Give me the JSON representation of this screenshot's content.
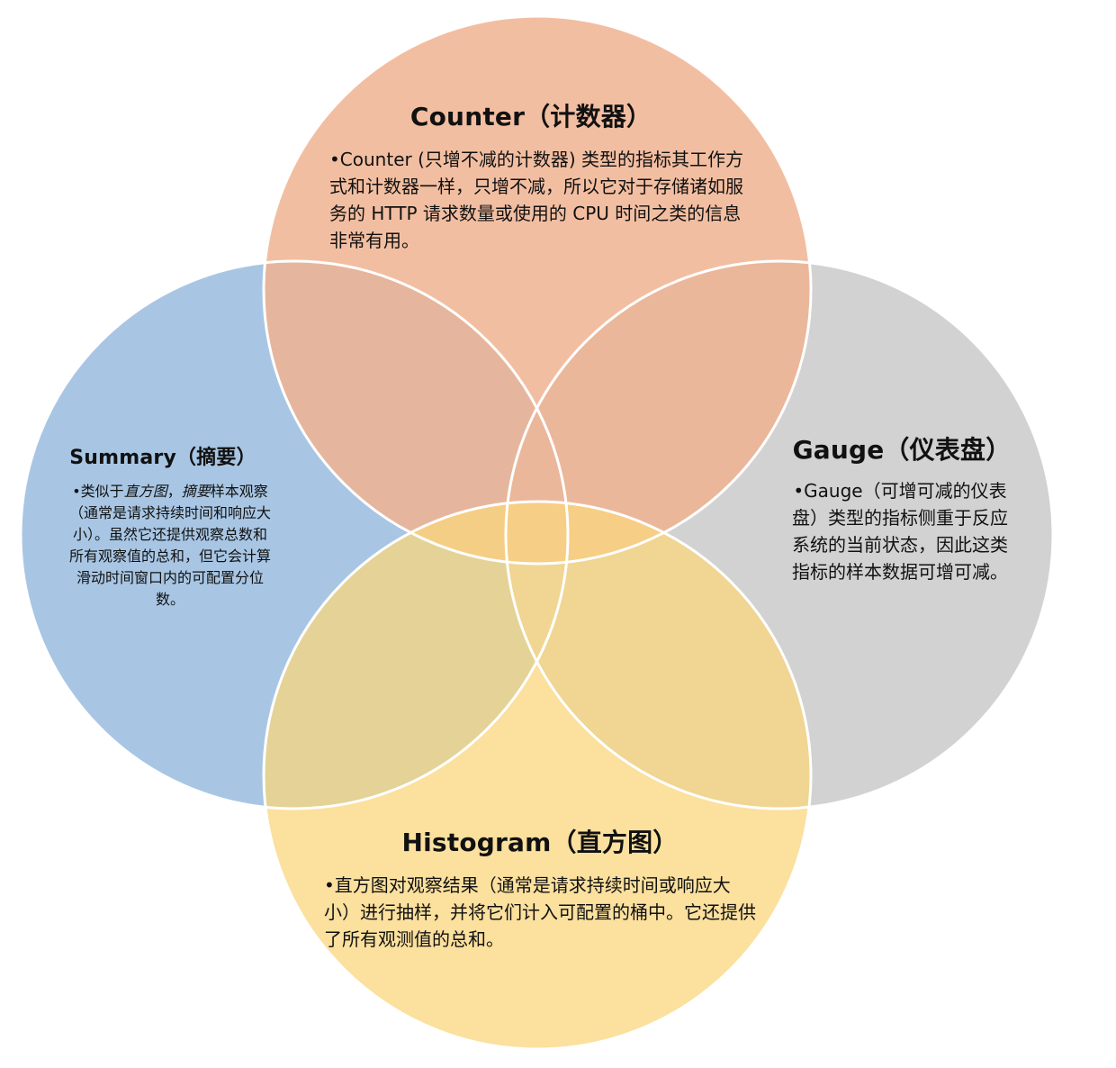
{
  "colors": {
    "counter": "#F0B390",
    "summary": "#A8C6E4",
    "gauge": "#D2D2D2",
    "histogram": "#FAD67E",
    "outline": "#FFFFFF"
  },
  "sets": {
    "counter": {
      "title": "Counter（计数器）",
      "description": "•Counter (只增不减的计数器) 类型的指标其工作方式和计数器一样，只增不减，所以它对于存储诸如服务的 HTTP 请求数量或使用的 CPU 时间之类的信息非常有用。"
    },
    "summary": {
      "title": "Summary（摘要）",
      "description_prefix": "•类似于",
      "description_italic_1": "直方图",
      "description_sep": "，",
      "description_italic_2": "摘要",
      "description_suffix": "样本观察（通常是请求持续时间和响应大小）。虽然它还提供观察总数和所有观察值的总和，但它会计算滑动时间窗口内的可配置分位数。"
    },
    "gauge": {
      "title": "Gauge（仪表盘）",
      "description": "•Gauge（可增可减的仪表盘）类型的指标侧重于反应系统的当前状态，因此这类指标的样本数据可增可减。"
    },
    "histogram": {
      "title": "Histogram（直方图）",
      "description": "•直方图对观察结果（通常是请求持续时间或响应大小）进行抽样，并将它们计入可配置的桶中。它还提供了所有观测值的总和。"
    }
  }
}
